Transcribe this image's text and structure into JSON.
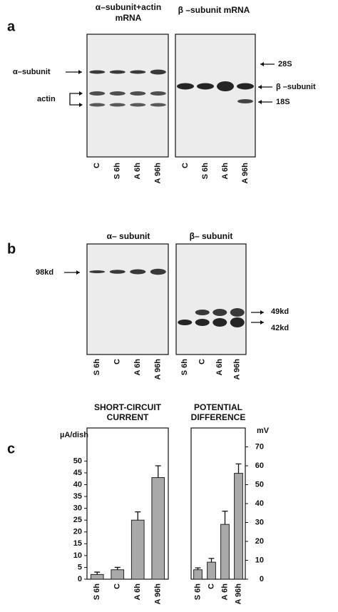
{
  "panel_a": {
    "label": "a",
    "left_title": [
      "α–subunit+actin",
      "mRNA"
    ],
    "right_title": "β –subunit  mRNA",
    "left_markers": [
      "α–subunit",
      "actin"
    ],
    "right_markers": [
      "28S",
      "β –subunit",
      "18S"
    ],
    "lanes": [
      "C",
      "S 6h",
      "A 6h",
      "A 96h"
    ]
  },
  "panel_b": {
    "label": "b",
    "left_title": "α– subunit",
    "right_title": "β– subunit",
    "left_markers": [
      "98kd"
    ],
    "right_markers": [
      "49kd",
      "42kd"
    ],
    "lanes": [
      "S 6h",
      "C",
      "A 6h",
      "A 96h"
    ]
  },
  "panel_c_label": "c",
  "chart_data": [
    {
      "type": "bar",
      "title": [
        "SHORT-CIRCUIT",
        "CURRENT"
      ],
      "y_label": "µA/dish",
      "categories": [
        "S 6h",
        "C",
        "A 6h",
        "A 96h"
      ],
      "values": [
        2,
        4,
        25,
        43
      ],
      "errors": [
        1,
        1,
        3.5,
        5
      ],
      "ylim": [
        0,
        64
      ],
      "yticks": [
        0,
        5,
        10,
        15,
        20,
        25,
        30,
        35,
        40,
        45,
        50
      ],
      "color": "#a9a9a9",
      "axis_side": "left"
    },
    {
      "type": "bar",
      "title": [
        "POTENTIAL",
        "DIFFERENCE"
      ],
      "y_label": "mV",
      "categories": [
        "S 6h",
        "C",
        "A 6h",
        "A 96h"
      ],
      "values": [
        5,
        9,
        29,
        56
      ],
      "errors": [
        1,
        2,
        7,
        5
      ],
      "ylim": [
        0,
        80
      ],
      "yticks": [
        0,
        10,
        20,
        30,
        40,
        50,
        60,
        70
      ],
      "color": "#a9a9a9",
      "axis_side": "right"
    }
  ]
}
